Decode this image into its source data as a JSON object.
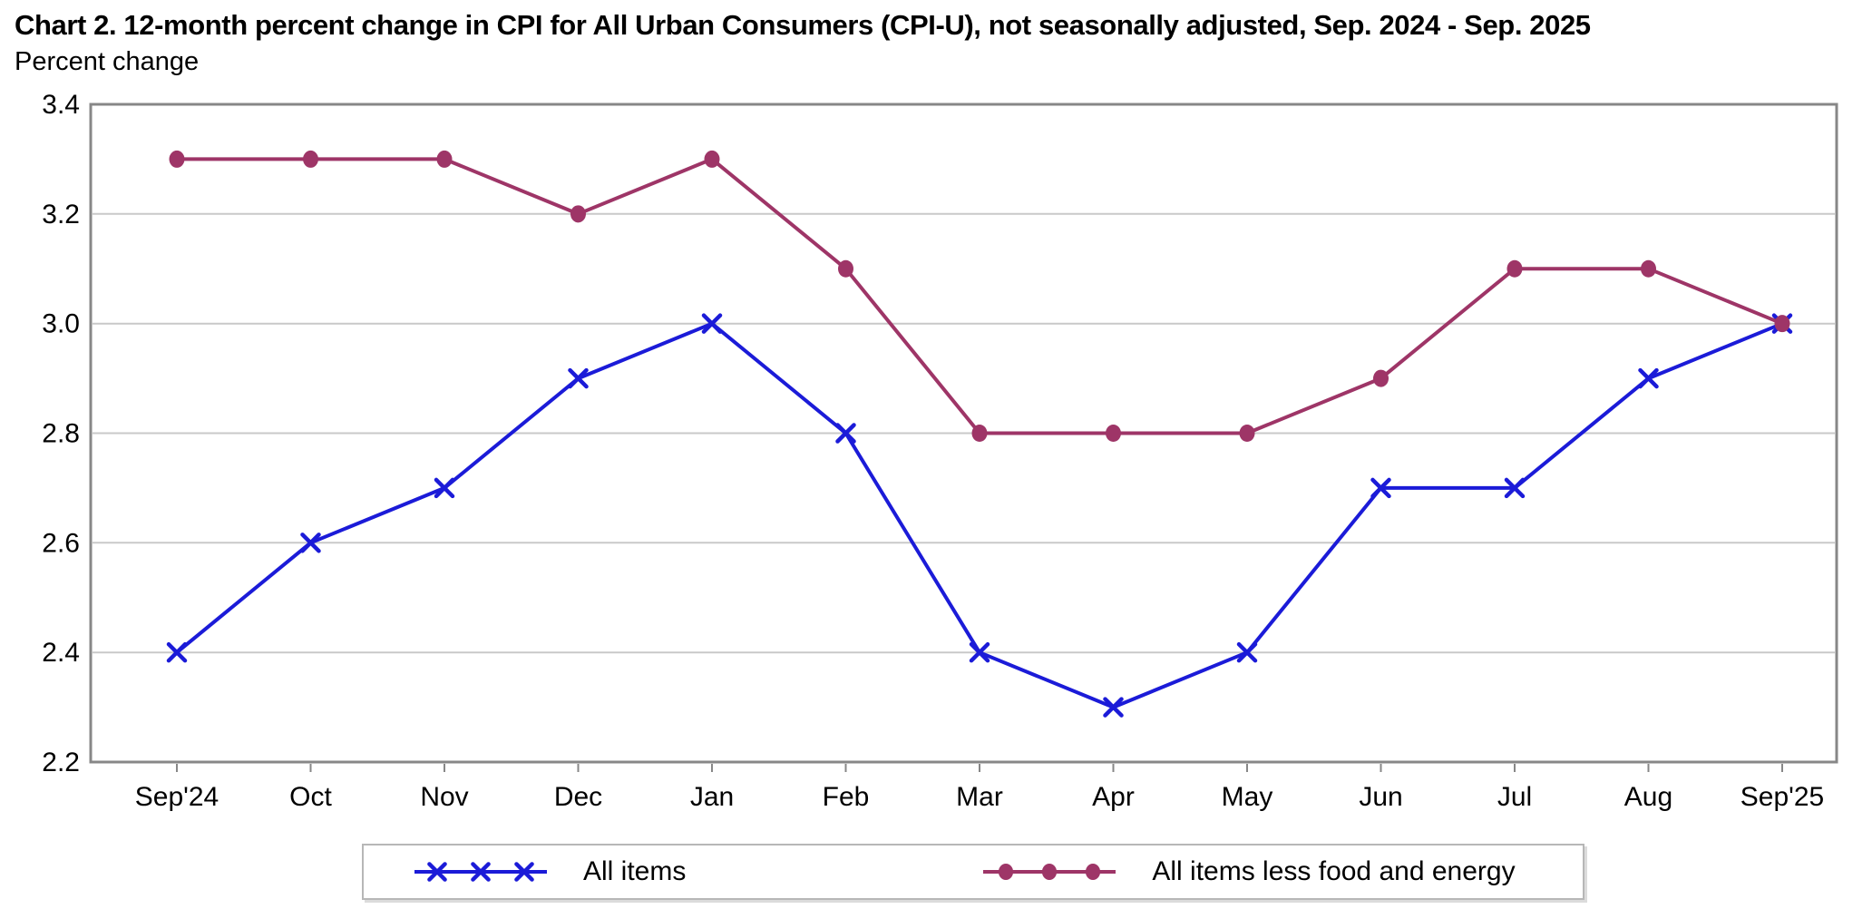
{
  "colors": {
    "all_items_blue": "#1b1bd8",
    "core_maroon": "#9e3567",
    "grid": "#c9c9c9",
    "axis_border": "#878787",
    "text": "#000000",
    "legend_border": "#b7b7b7"
  },
  "chart_data": {
    "type": "line",
    "title": "Chart 2. 12-month percent change in CPI for All Urban Consumers (CPI-U), not seasonally adjusted, Sep. 2024 - Sep. 2025",
    "ylabel": "Percent change",
    "xlabel": "",
    "categories": [
      "Sep'24",
      "Oct",
      "Nov",
      "Dec",
      "Jan",
      "Feb",
      "Mar",
      "Apr",
      "May",
      "Jun",
      "Jul",
      "Aug",
      "Sep'25"
    ],
    "series": [
      {
        "name": "All items",
        "marker": "x",
        "color": "#1b1bd8",
        "values": [
          2.4,
          2.6,
          2.7,
          2.9,
          3.0,
          2.8,
          2.4,
          2.3,
          2.4,
          2.7,
          2.7,
          2.9,
          3.0
        ]
      },
      {
        "name": "All items less food and energy",
        "marker": "dot",
        "color": "#9e3567",
        "values": [
          3.3,
          3.3,
          3.3,
          3.2,
          3.3,
          3.1,
          2.8,
          2.8,
          2.8,
          2.9,
          3.1,
          3.1,
          3.0
        ]
      }
    ],
    "ylim": [
      2.2,
      3.4
    ],
    "ytick_step": 0.2,
    "yticks": [
      "3.4",
      "3.2",
      "3.0",
      "2.8",
      "2.6",
      "2.4",
      "2.2"
    ],
    "grid": true,
    "legend_position": "bottom"
  }
}
